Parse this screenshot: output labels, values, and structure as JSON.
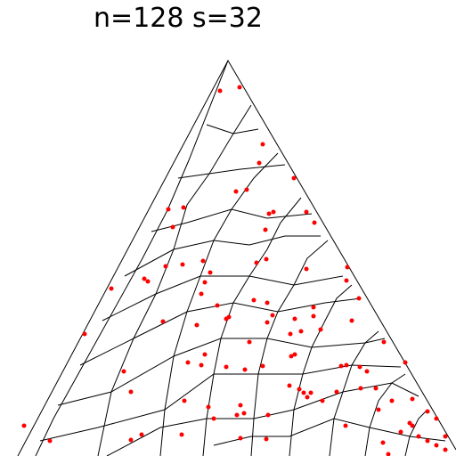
{
  "title": "n=128 s=32"
}
